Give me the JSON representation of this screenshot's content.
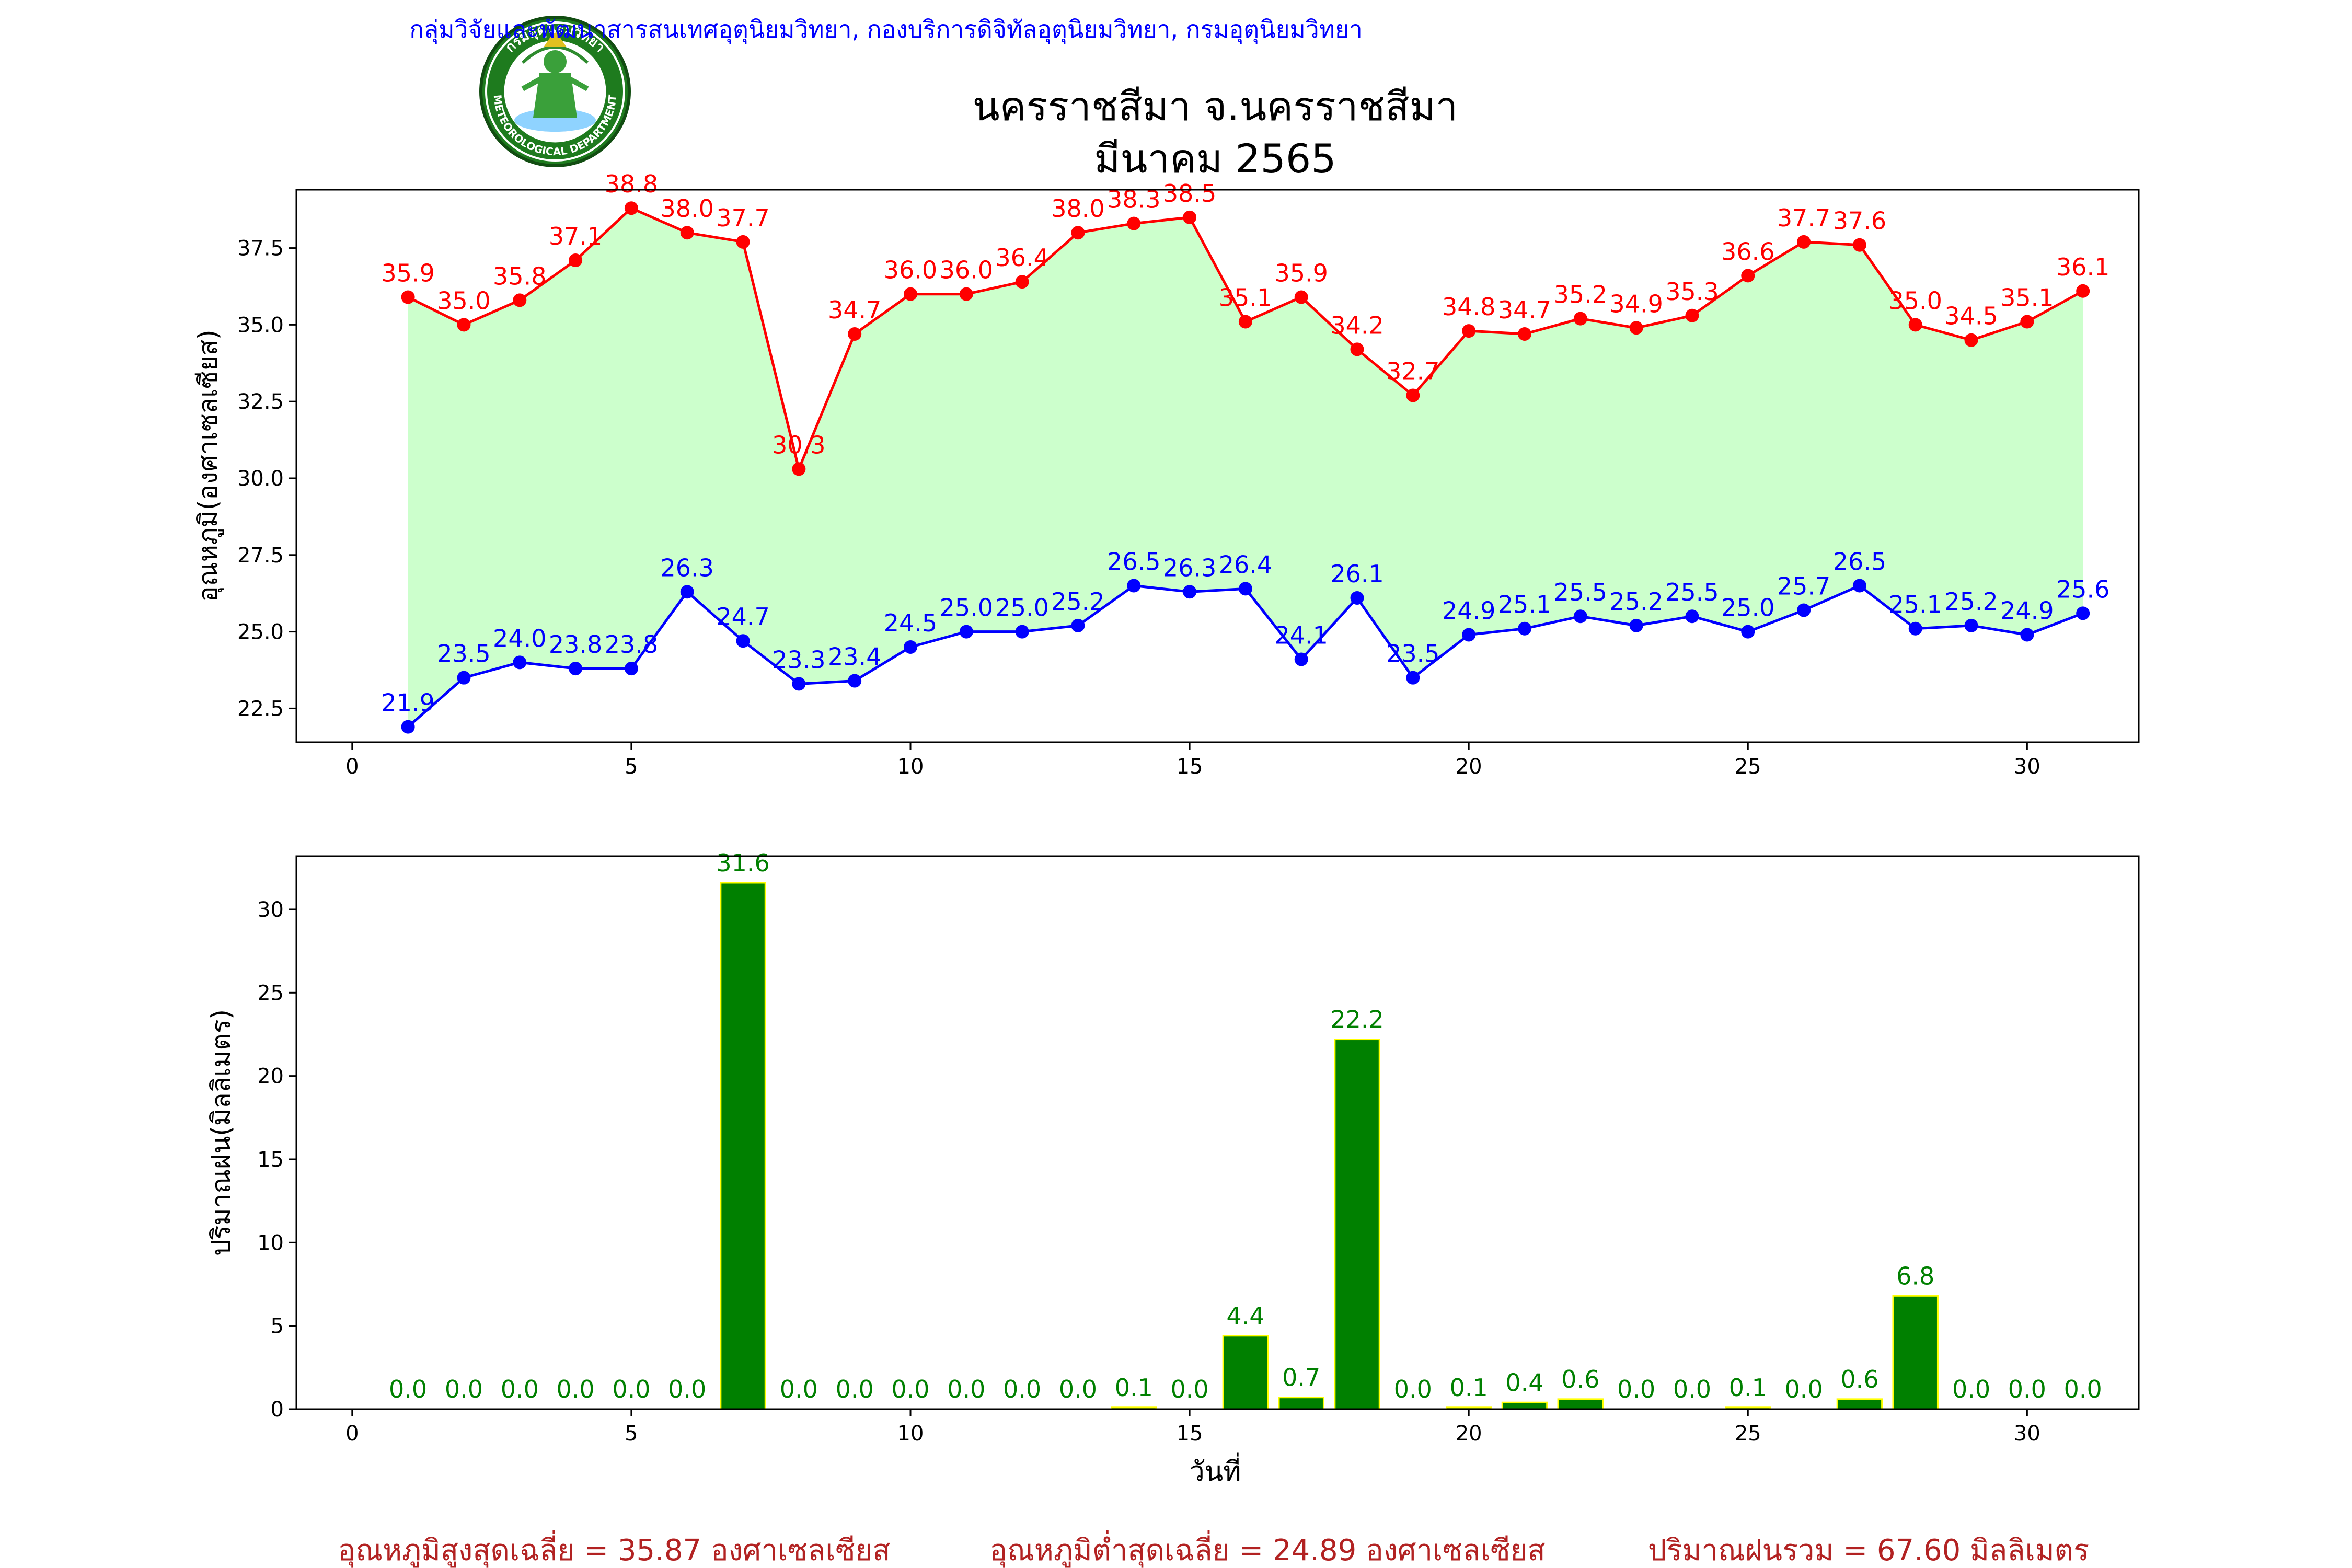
{
  "header": {
    "org_line": "กลุ่มวิจัยและพัฒนาสารสนเทศอุตุนิยมวิทยา, กองบริการดิจิทัลอุตุนิยมวิทยา, กรมอุตุนิยมวิทยา",
    "title_line1": "นครราชสีมา จ.นครราชสีมา",
    "title_line2": "มีนาคม 2565",
    "logo_top_text": "กรมอุตุนิยมวิทยา",
    "logo_bottom_text": "METEOROLOGICAL DEPARTMENT"
  },
  "colors": {
    "org_line": "#0000ff",
    "max_series": "#ff0000",
    "min_series": "#0000ff",
    "range_fill": "#ccffcc",
    "rain_bar": "#008000",
    "rain_bar_edge": "#ffff00",
    "rain_label": "#008000",
    "footer_text": "#b22222"
  },
  "footer": {
    "avg_max": "อุณหภูมิสูงสุดเฉลี่ย = 35.87 องศาเซลเซียส",
    "avg_min": "อุณหภูมิต่ำสุดเฉลี่ย = 24.89 องศาเซลเซียส",
    "total_rain": "ปริมาณฝนรวม = 67.60 มิลลิเมตร"
  },
  "chart_data": [
    {
      "type": "line",
      "ylabel": "อุณหภูมิ(องศาเซลเซียส)",
      "xlabel": "",
      "xlim": [
        -1,
        32
      ],
      "ylim": [
        21.4,
        39.4
      ],
      "xticks": [
        0,
        5,
        10,
        15,
        20,
        25,
        30
      ],
      "yticks": [
        22.5,
        25.0,
        27.5,
        30.0,
        32.5,
        35.0,
        37.5
      ],
      "x": [
        1,
        2,
        3,
        4,
        5,
        6,
        7,
        8,
        9,
        10,
        11,
        12,
        13,
        14,
        15,
        16,
        17,
        18,
        19,
        20,
        21,
        22,
        23,
        24,
        25,
        26,
        27,
        28,
        29,
        30,
        31
      ],
      "series": [
        {
          "key": "max",
          "values": [
            35.9,
            35.0,
            35.8,
            37.1,
            38.8,
            38.0,
            37.7,
            30.3,
            34.7,
            36.0,
            36.0,
            36.4,
            38.0,
            38.3,
            38.5,
            35.1,
            35.9,
            34.2,
            32.7,
            34.8,
            34.7,
            35.2,
            34.9,
            35.3,
            36.6,
            37.7,
            37.6,
            35.0,
            34.5,
            35.1,
            36.1
          ]
        },
        {
          "key": "min",
          "values": [
            21.9,
            23.5,
            24.0,
            23.8,
            23.8,
            26.3,
            24.7,
            23.3,
            23.4,
            24.5,
            25.0,
            25.0,
            25.2,
            26.5,
            26.3,
            26.4,
            24.1,
            26.1,
            23.5,
            24.9,
            25.1,
            25.5,
            25.2,
            25.5,
            25.0,
            25.7,
            26.5,
            25.1,
            25.2,
            24.9,
            25.6
          ]
        }
      ],
      "fill_between": true,
      "grid": false
    },
    {
      "type": "bar",
      "ylabel": "ปริมาณฝน(มิลลิเมตร)",
      "xlabel": "วันที่",
      "xlim": [
        -1,
        32
      ],
      "ylim": [
        0,
        33.2
      ],
      "xticks": [
        0,
        5,
        10,
        15,
        20,
        25,
        30
      ],
      "yticks": [
        0,
        5,
        10,
        15,
        20,
        25,
        30
      ],
      "x": [
        1,
        2,
        3,
        4,
        5,
        6,
        7,
        8,
        9,
        10,
        11,
        12,
        13,
        14,
        15,
        16,
        17,
        18,
        19,
        20,
        21,
        22,
        23,
        24,
        25,
        26,
        27,
        28,
        29,
        30,
        31
      ],
      "values": [
        0.0,
        0.0,
        0.0,
        0.0,
        0.0,
        0.0,
        31.6,
        0.0,
        0.0,
        0.0,
        0.0,
        0.0,
        0.0,
        0.1,
        0.0,
        4.4,
        0.7,
        22.2,
        0.0,
        0.1,
        0.4,
        0.6,
        0.0,
        0.0,
        0.1,
        0.0,
        0.6,
        6.8,
        0.0,
        0.0,
        0.0
      ],
      "grid": false
    }
  ]
}
